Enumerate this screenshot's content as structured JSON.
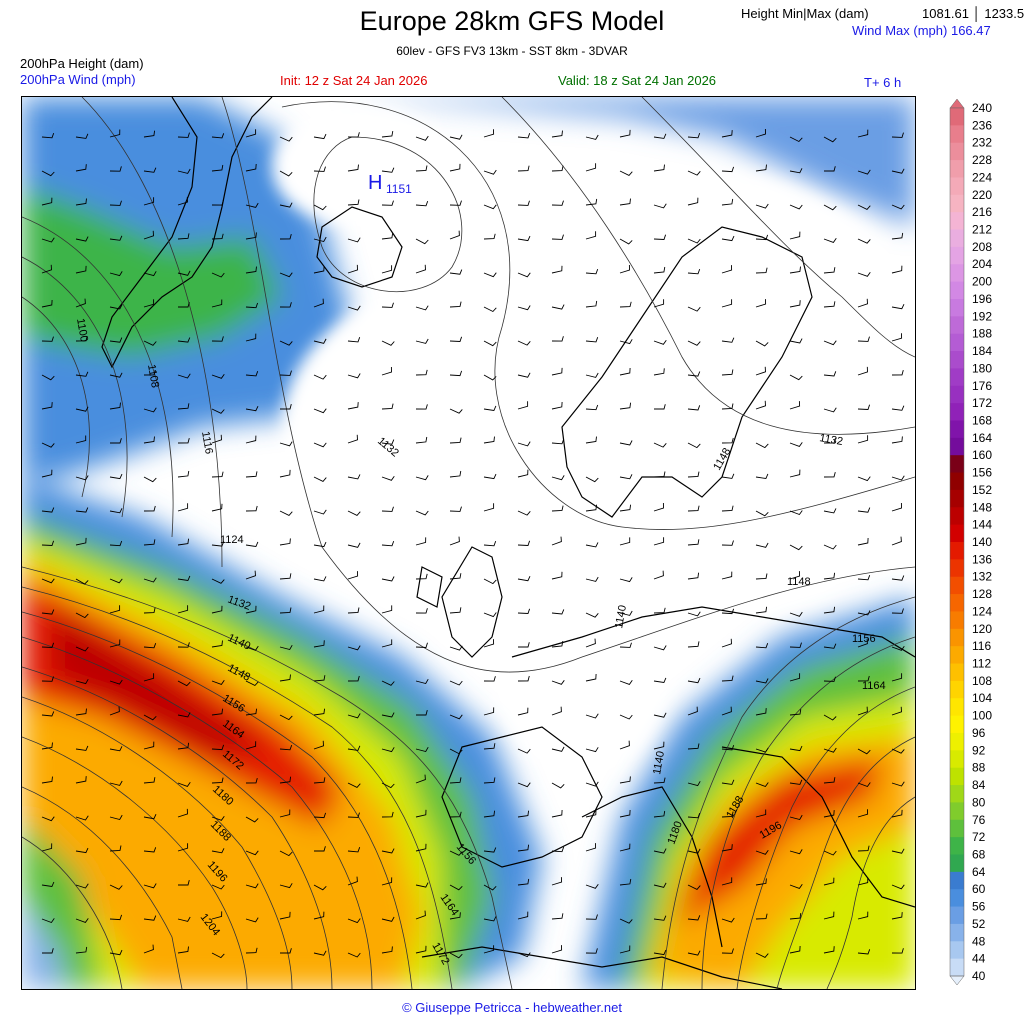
{
  "header": {
    "title": "Europe 28km GFS Model",
    "subtitle": "60lev - GFS FV3 13km - SST 8km - 3DVAR",
    "height_minmax_label": "Height Min|Max (dam)",
    "height_minmax_values": "1081.61 │ 1233.55",
    "wind_max": "Wind Max (mph)    166.47",
    "variable_1": "200hPa Height (dam)",
    "variable_2": "200hPa Wind (mph)",
    "init": "Init:  12 z Sat 24 Jan 2026",
    "valid": "Valid:   18 z Sat 24 Jan 2026",
    "lead_time": "T+  6  h"
  },
  "map": {
    "high_center": {
      "symbol": "H",
      "value": "1151"
    },
    "contour_labels": [
      "1100",
      "1108",
      "1116",
      "1124",
      "1132",
      "1140",
      "1148",
      "1156",
      "1164",
      "1172",
      "1180",
      "1188",
      "1196",
      "1204",
      "1132",
      "1140",
      "1148",
      "1156",
      "1164",
      "1172",
      "1180",
      "1188",
      "1196",
      "1132",
      "1140",
      "1148",
      "1156",
      "1164"
    ]
  },
  "legend": {
    "labels": [
      "240",
      "236",
      "232",
      "228",
      "224",
      "220",
      "216",
      "212",
      "208",
      "204",
      "200",
      "196",
      "192",
      "188",
      "184",
      "180",
      "176",
      "172",
      "168",
      "164",
      "160",
      "156",
      "152",
      "148",
      "144",
      "140",
      "136",
      "132",
      "128",
      "124",
      "120",
      "116",
      "112",
      "108",
      "104",
      "100",
      "96",
      "92",
      "88",
      "84",
      "80",
      "76",
      "72",
      "68",
      "64",
      "60",
      "56",
      "52",
      "48",
      "44",
      "40"
    ],
    "colors": [
      "#e06a78",
      "#e87e8c",
      "#ec8e9c",
      "#f09eab",
      "#f4aab8",
      "#f6b4c2",
      "#f4b4d4",
      "#eaaee0",
      "#e4a4e4",
      "#dc96e4",
      "#d288e4",
      "#c87ae0",
      "#be6ad8",
      "#b45cd4",
      "#aa4ccc",
      "#a03cc6",
      "#9830c0",
      "#9022b8",
      "#8014aa",
      "#740c9c",
      "#7a0018",
      "#900000",
      "#a60000",
      "#bc0000",
      "#d20000",
      "#e41a00",
      "#ec3400",
      "#f24e00",
      "#f66600",
      "#f87c00",
      "#fa9400",
      "#fcaa00",
      "#fec000",
      "#ffd400",
      "#ffe600",
      "#fff200",
      "#eef000",
      "#d8ea00",
      "#bee200",
      "#a0d818",
      "#80cc2c",
      "#5ec03c",
      "#3eb448",
      "#30a850",
      "#3a7cd0",
      "#4a8ede",
      "#6a9ee4",
      "#88b2ea",
      "#a8c8f0",
      "#c8dcf6",
      "#e6f0fc"
    ]
  },
  "colors": {
    "accent_blue": "#1a1ae6",
    "init_red": "#e00000",
    "valid_green": "#007000"
  },
  "footer": "© Giuseppe Petricca - hebweather.net"
}
